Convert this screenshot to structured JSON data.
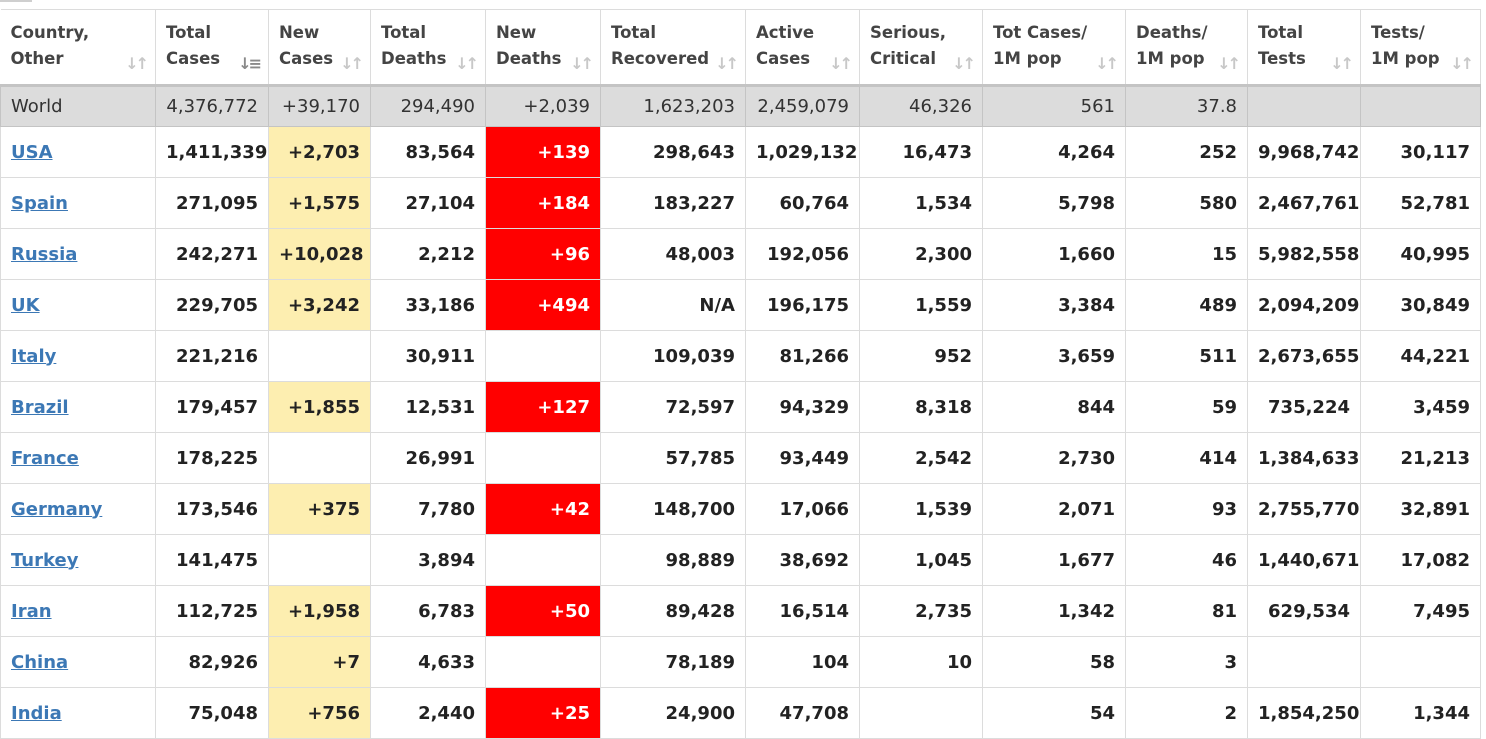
{
  "headers": [
    {
      "line1": "Country,",
      "line2": "Other"
    },
    {
      "line1": "Total",
      "line2": "Cases"
    },
    {
      "line1": "New",
      "line2": "Cases"
    },
    {
      "line1": "Total",
      "line2": "Deaths"
    },
    {
      "line1": "New",
      "line2": "Deaths"
    },
    {
      "line1": "Total",
      "line2": "Recovered"
    },
    {
      "line1": "Active",
      "line2": "Cases"
    },
    {
      "line1": "Serious,",
      "line2": "Critical"
    },
    {
      "line1": "Tot Cases/",
      "line2": "1M pop"
    },
    {
      "line1": "Deaths/",
      "line2": "1M pop"
    },
    {
      "line1": "Total",
      "line2": "Tests"
    },
    {
      "line1": "Tests/",
      "line2": "1M pop"
    }
  ],
  "sort_icon": "sort-arrows-icon",
  "active_sort_icon": "sort-desc-icon",
  "colors": {
    "new_cases_bg": "#fdeeb0",
    "new_deaths_bg": "#ff0000",
    "world_bg": "#dcdcdc",
    "link": "#3c78b5"
  },
  "world": [
    "World",
    "4,376,772",
    "+39,170",
    "294,490",
    "+2,039",
    "1,623,203",
    "2,459,079",
    "46,326",
    "561",
    "37.8",
    "",
    ""
  ],
  "rows": [
    [
      "USA",
      "1,411,339",
      "+2,703",
      "83,564",
      "+139",
      "298,643",
      "1,029,132",
      "16,473",
      "4,264",
      "252",
      "9,968,742",
      "30,117"
    ],
    [
      "Spain",
      "271,095",
      "+1,575",
      "27,104",
      "+184",
      "183,227",
      "60,764",
      "1,534",
      "5,798",
      "580",
      "2,467,761",
      "52,781"
    ],
    [
      "Russia",
      "242,271",
      "+10,028",
      "2,212",
      "+96",
      "48,003",
      "192,056",
      "2,300",
      "1,660",
      "15",
      "5,982,558",
      "40,995"
    ],
    [
      "UK",
      "229,705",
      "+3,242",
      "33,186",
      "+494",
      "N/A",
      "196,175",
      "1,559",
      "3,384",
      "489",
      "2,094,209",
      "30,849"
    ],
    [
      "Italy",
      "221,216",
      "",
      "30,911",
      "",
      "109,039",
      "81,266",
      "952",
      "3,659",
      "511",
      "2,673,655",
      "44,221"
    ],
    [
      "Brazil",
      "179,457",
      "+1,855",
      "12,531",
      "+127",
      "72,597",
      "94,329",
      "8,318",
      "844",
      "59",
      "735,224",
      "3,459"
    ],
    [
      "France",
      "178,225",
      "",
      "26,991",
      "",
      "57,785",
      "93,449",
      "2,542",
      "2,730",
      "414",
      "1,384,633",
      "21,213"
    ],
    [
      "Germany",
      "173,546",
      "+375",
      "7,780",
      "+42",
      "148,700",
      "17,066",
      "1,539",
      "2,071",
      "93",
      "2,755,770",
      "32,891"
    ],
    [
      "Turkey",
      "141,475",
      "",
      "3,894",
      "",
      "98,889",
      "38,692",
      "1,045",
      "1,677",
      "46",
      "1,440,671",
      "17,082"
    ],
    [
      "Iran",
      "112,725",
      "+1,958",
      "6,783",
      "+50",
      "89,428",
      "16,514",
      "2,735",
      "1,342",
      "81",
      "629,534",
      "7,495"
    ],
    [
      "China",
      "82,926",
      "+7",
      "4,633",
      "",
      "78,189",
      "104",
      "10",
      "58",
      "3",
      "",
      ""
    ],
    [
      "India",
      "75,048",
      "+756",
      "2,440",
      "+25",
      "24,900",
      "47,708",
      "",
      "54",
      "2",
      "1,854,250",
      "1,344"
    ]
  ]
}
